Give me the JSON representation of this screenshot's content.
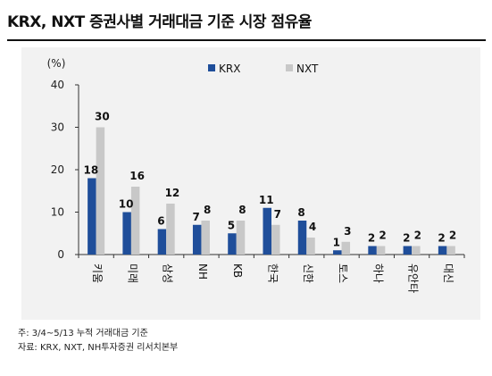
{
  "title": "KRX, NXT 증권사별 거래대금 기준 시장 점유율",
  "notes": {
    "note": "주: 3/4~5/13 누적 거래대금 기준",
    "source": "자료: KRX, NXT, NH투자증권 리서치본부"
  },
  "colors": {
    "krx": "#1f4e9a",
    "nxt": "#c8c8c8",
    "panel": "#f2f2f2"
  },
  "chart_data": {
    "type": "bar",
    "title": "KRX, NXT 증권사별 거래대금 기준 시장 점유율",
    "unit_label": "(%)",
    "categories": [
      "키움",
      "미래",
      "삼성",
      "NH",
      "KB",
      "한국",
      "신한",
      "토스",
      "하나",
      "유안타",
      "대신"
    ],
    "series": [
      {
        "name": "KRX",
        "values": [
          18,
          10,
          6,
          7,
          5,
          11,
          8,
          1,
          2,
          2,
          2
        ],
        "color": "#1f4e9a"
      },
      {
        "name": "NXT",
        "values": [
          30,
          16,
          12,
          8,
          8,
          7,
          4,
          3,
          2,
          2,
          2
        ],
        "color": "#c8c8c8"
      }
    ],
    "ylim": [
      0,
      40
    ],
    "yticks": [
      0,
      10,
      20,
      30,
      40
    ],
    "legend": "top",
    "grid": false
  }
}
